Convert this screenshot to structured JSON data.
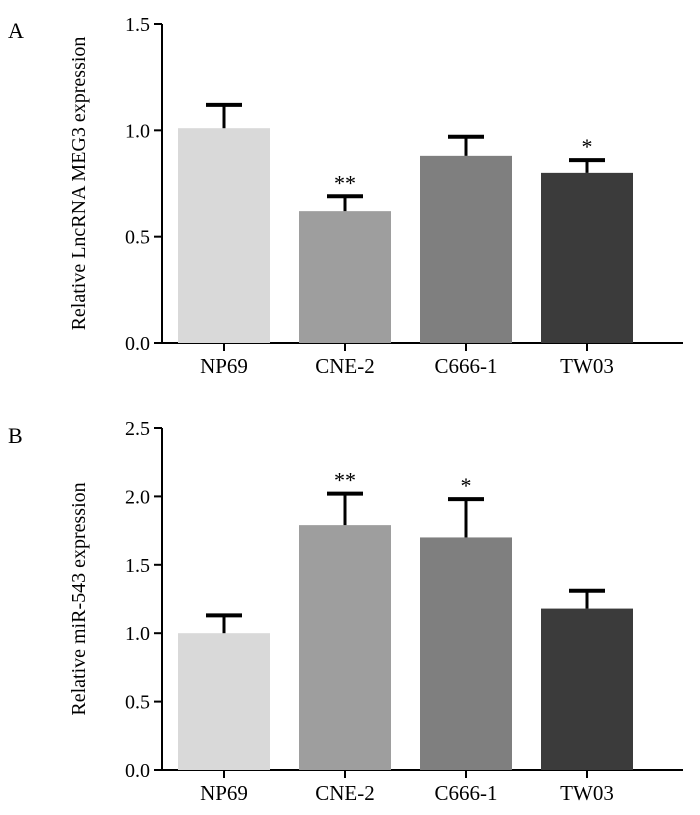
{
  "colors": {
    "axis": "#000000",
    "bars": [
      "#d9d9d9",
      "#9e9e9e",
      "#7f7f7f",
      "#3b3b3b"
    ]
  },
  "chart_data": [
    {
      "panel_label": "A",
      "type": "bar",
      "title": "",
      "xlabel": "",
      "ylabel": "Relative LncRNA MEG3 expression",
      "categories": [
        "NP69",
        "CNE-2",
        "C666-1",
        "TW03"
      ],
      "values": [
        1.01,
        0.62,
        0.88,
        0.8
      ],
      "error_plus": [
        0.11,
        0.07,
        0.09,
        0.06
      ],
      "significance": [
        "",
        "**",
        "",
        "*"
      ],
      "ylim": [
        0,
        1.5
      ],
      "yticks": [
        0.0,
        0.5,
        1.0,
        1.5
      ],
      "ytick_labels": [
        "0.0",
        "0.5",
        "1.0",
        "1.5"
      ],
      "grid": false
    },
    {
      "panel_label": "B",
      "type": "bar",
      "title": "",
      "xlabel": "",
      "ylabel": "Relative miR-543 expression",
      "categories": [
        "NP69",
        "CNE-2",
        "C666-1",
        "TW03"
      ],
      "values": [
        1.0,
        1.79,
        1.7,
        1.18
      ],
      "error_plus": [
        0.13,
        0.23,
        0.28,
        0.13
      ],
      "significance": [
        "",
        "**",
        "*",
        ""
      ],
      "ylim": [
        0,
        2.5
      ],
      "yticks": [
        0.0,
        0.5,
        1.0,
        1.5,
        2.0,
        2.5
      ],
      "ytick_labels": [
        "0.0",
        "0.5",
        "1.0",
        "1.5",
        "2.0",
        "2.5"
      ],
      "grid": false
    }
  ]
}
